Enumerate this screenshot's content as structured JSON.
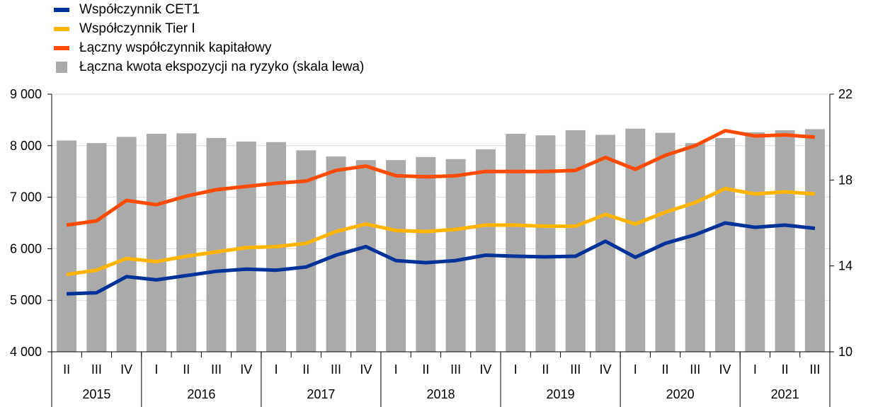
{
  "legend": {
    "cet1": "Współczynnik CET1",
    "tier1": "Współczynnik Tier I",
    "total": "Łączny współczynnik kapitałowy",
    "rwa": "Łączna kwota ekspozycji na ryzyko (skala lewa)"
  },
  "chart_data": {
    "type": "bar",
    "title": "",
    "quarters": [
      "II",
      "III",
      "IV",
      "I",
      "II",
      "III",
      "IV",
      "I",
      "II",
      "III",
      "IV",
      "I",
      "II",
      "III",
      "IV",
      "I",
      "II",
      "III",
      "IV",
      "I",
      "II",
      "III",
      "IV",
      "I",
      "II",
      "III"
    ],
    "years": [
      {
        "label": "2015",
        "count": 3
      },
      {
        "label": "2016",
        "count": 4
      },
      {
        "label": "2017",
        "count": 4
      },
      {
        "label": "2018",
        "count": 4
      },
      {
        "label": "2019",
        "count": 4
      },
      {
        "label": "2020",
        "count": 4
      },
      {
        "label": "2021",
        "count": 3
      }
    ],
    "left_axis": {
      "min": 4000,
      "max": 9000,
      "ticks": [
        4000,
        5000,
        6000,
        7000,
        8000,
        9000
      ],
      "tick_labels": [
        "4 000",
        "5 000",
        "6 000",
        "7 000",
        "8 000",
        "9 000"
      ]
    },
    "right_axis": {
      "min": 10,
      "max": 22,
      "ticks": [
        10,
        14,
        18,
        22
      ],
      "tick_labels": [
        "10",
        "14",
        "18",
        "22"
      ]
    },
    "series": [
      {
        "name": "Łączna kwota ekspozycji na ryzyko (skala lewa)",
        "type": "bar",
        "axis": "left",
        "color": "#aaaaaa",
        "values": [
          8100,
          8050,
          8170,
          8230,
          8240,
          8150,
          8080,
          8070,
          7910,
          7790,
          7720,
          7720,
          7780,
          7740,
          7930,
          8230,
          8200,
          8300,
          8210,
          8330,
          8250,
          8050,
          8150,
          8260,
          8300,
          8320
        ]
      },
      {
        "name": "Współczynnik CET1",
        "type": "line",
        "axis": "right",
        "color": "#003299",
        "values": [
          12.7,
          12.75,
          13.5,
          13.35,
          13.55,
          13.75,
          13.85,
          13.8,
          13.95,
          14.5,
          14.9,
          14.25,
          14.15,
          14.25,
          14.5,
          14.45,
          14.42,
          14.45,
          15.15,
          14.4,
          15.05,
          15.45,
          16.0,
          15.8,
          15.9,
          15.75
        ]
      },
      {
        "name": "Współczynnik Tier I",
        "type": "line",
        "axis": "right",
        "color": "#ffb400",
        "values": [
          13.6,
          13.8,
          14.35,
          14.2,
          14.45,
          14.65,
          14.85,
          14.9,
          15.05,
          15.6,
          15.95,
          15.65,
          15.6,
          15.7,
          15.9,
          15.9,
          15.85,
          15.85,
          16.4,
          15.95,
          16.5,
          16.95,
          17.6,
          17.35,
          17.45,
          17.35
        ]
      },
      {
        "name": "Łączny współczynnik kapitałowy",
        "type": "line",
        "axis": "right",
        "color": "#ff4b00",
        "values": [
          15.9,
          16.1,
          17.05,
          16.85,
          17.25,
          17.55,
          17.7,
          17.85,
          17.95,
          18.45,
          18.65,
          18.2,
          18.15,
          18.2,
          18.4,
          18.4,
          18.4,
          18.45,
          19.05,
          18.5,
          19.15,
          19.6,
          20.3,
          20.05,
          20.1,
          20.0
        ]
      }
    ],
    "grid": true,
    "legend_position": "top-left"
  }
}
